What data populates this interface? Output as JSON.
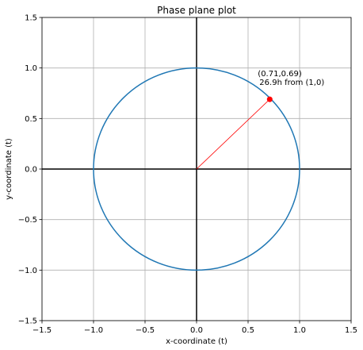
{
  "chart_data": {
    "type": "line",
    "title": "Phase plane plot",
    "xlabel": "x-coordinate (t)",
    "ylabel": "y-coordinate (t)",
    "xlim": [
      -1.5,
      1.5
    ],
    "ylim": [
      -1.5,
      1.5
    ],
    "grid": true,
    "x_ticks": [
      -1.5,
      -1.0,
      -0.5,
      0.0,
      0.5,
      1.0,
      1.5
    ],
    "y_ticks": [
      -1.5,
      -1.0,
      -0.5,
      0.0,
      0.5,
      1.0,
      1.5
    ],
    "x_tick_labels": [
      "−1.5",
      "−1.0",
      "−0.5",
      "0.0",
      "0.5",
      "1.0",
      "1.5"
    ],
    "y_tick_labels": [
      "−1.5",
      "−1.0",
      "−0.5",
      "0.0",
      "0.5",
      "1.0",
      "1.5"
    ],
    "circle": {
      "center": [
        0,
        0
      ],
      "radius": 1.0,
      "color": "#1f77b4"
    },
    "point": {
      "x": 0.71,
      "y": 0.69,
      "color": "#ff0000"
    },
    "radius_line": {
      "from": [
        0,
        0
      ],
      "to": [
        0.71,
        0.69
      ],
      "color": "#ff0000"
    },
    "axes_lines_color": "#000000",
    "annotation": {
      "line1": "(0.71,0.69)",
      "line2": "26.9h from (1,0)"
    }
  }
}
